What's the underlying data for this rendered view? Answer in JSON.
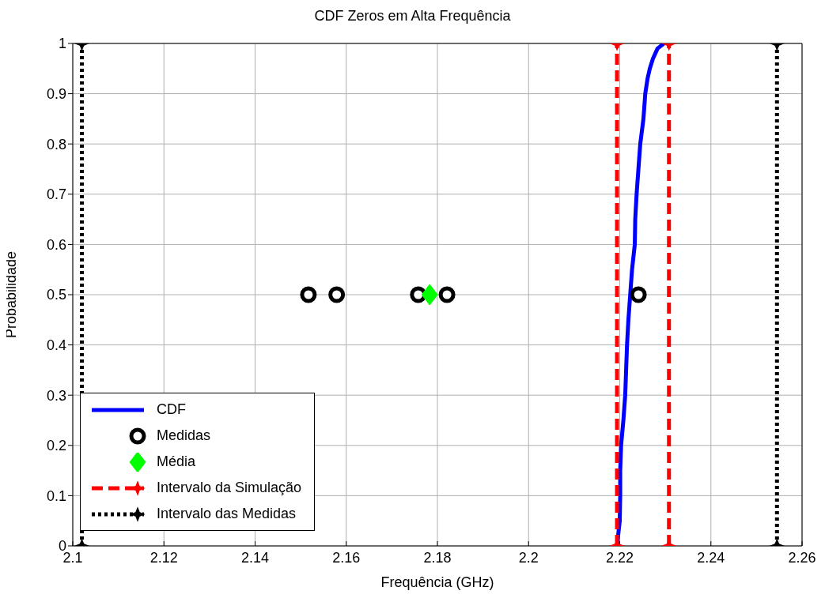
{
  "chart_data": {
    "type": "line",
    "title": "CDF Zeros em Alta Frequência",
    "xlabel": "Frequência (GHz)",
    "ylabel": "Probabilidade",
    "xlim": [
      2.1,
      2.26
    ],
    "xticks": [
      2.1,
      2.12,
      2.14,
      2.16,
      2.18,
      2.2,
      2.22,
      2.24,
      2.26
    ],
    "ylim": [
      0,
      1
    ],
    "yticks": [
      0,
      0.1,
      0.2,
      0.3,
      0.4,
      0.5,
      0.6,
      0.7,
      0.8,
      0.9,
      1
    ],
    "grid": true,
    "legend": "bottom left",
    "series": [
      {
        "name": "CDF",
        "type": "line",
        "color": "#0000ff",
        "marker": "none",
        "line_style": "solid",
        "x": [
          2.2194,
          2.22,
          2.2201,
          2.2201,
          2.2203,
          2.2208,
          2.2212,
          2.2214,
          2.2216,
          2.2219,
          2.2223,
          2.2227,
          2.2233,
          2.2234,
          2.2237,
          2.2241,
          2.2245,
          2.2252,
          2.2256,
          2.2261,
          2.2266,
          2.2273,
          2.2283,
          2.2297
        ],
        "values": [
          0,
          0.05,
          0.1,
          0.15,
          0.2,
          0.25,
          0.3,
          0.35,
          0.4,
          0.45,
          0.5,
          0.55,
          0.6,
          0.65,
          0.7,
          0.75,
          0.8,
          0.85,
          0.9,
          0.93,
          0.95,
          0.97,
          0.99,
          1
        ]
      },
      {
        "name": "Medidas",
        "type": "scatter",
        "color": "#000000",
        "marker": "circle",
        "x": [
          2.1517,
          2.1579,
          2.1758,
          2.1821,
          2.2241
        ],
        "values": [
          0.5,
          0.5,
          0.5,
          0.5,
          0.5
        ]
      },
      {
        "name": "Média",
        "type": "scatter",
        "color": "#00ff00",
        "marker": "diamond",
        "x": [
          2.1783
        ],
        "values": [
          0.5
        ]
      },
      {
        "name": "Intervalo da Simulação",
        "type": "line",
        "color": "#ff0000",
        "marker": "star",
        "line_style": "dashed",
        "x": [
          2.2194,
          2.2194
        ],
        "values": [
          0,
          1
        ]
      },
      {
        "type": "line",
        "color": "#ff0000",
        "marker": "star",
        "line_style": "dashed",
        "x": [
          2.2308,
          2.2308
        ],
        "values": [
          0,
          1
        ]
      },
      {
        "name": "Intervalo das Medidas",
        "type": "line",
        "color": "#000000",
        "marker": "star",
        "line_style": "dotted",
        "x": [
          2.102,
          2.102
        ],
        "values": [
          0,
          1
        ]
      },
      {
        "type": "line",
        "color": "#000000",
        "marker": "star",
        "line_style": "dotted",
        "x": [
          2.2545,
          2.2545
        ],
        "values": [
          0,
          1
        ]
      }
    ]
  }
}
